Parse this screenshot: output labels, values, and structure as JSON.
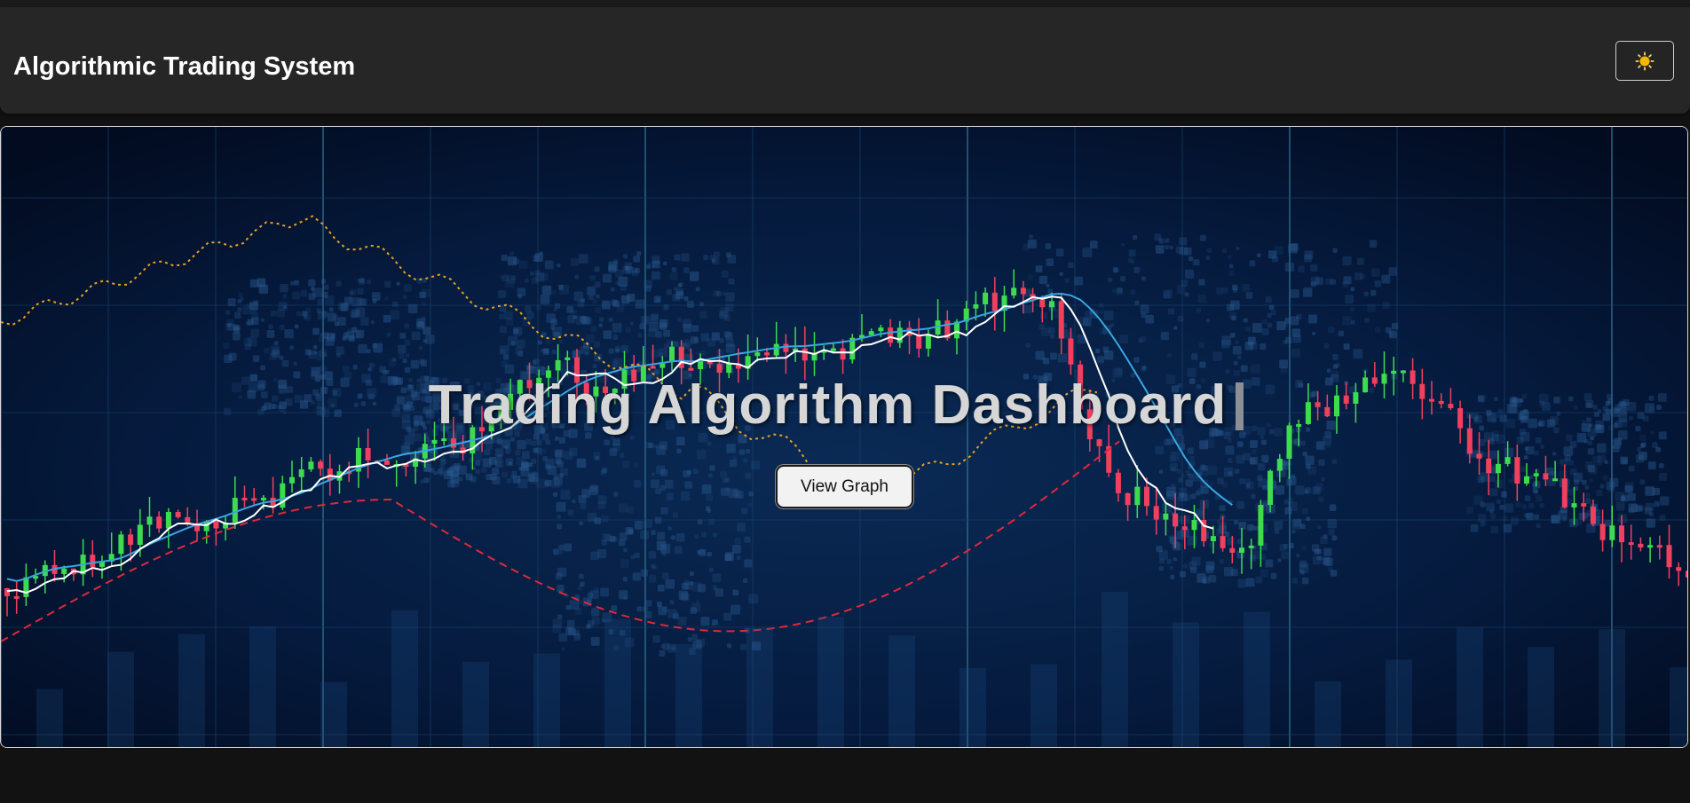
{
  "header": {
    "title": "Algorithmic Trading System",
    "theme_toggle_icon": "sun-icon"
  },
  "hero": {
    "title": "Trading Algorithm Dashboard",
    "button_label": "View Graph"
  },
  "colors": {
    "page_bg": "#121212",
    "header_bg": "#262626",
    "hero_bg": "#031330",
    "candle_up": "#3ddc4f",
    "candle_down": "#f0405e",
    "line_blue": "#3aa6e0",
    "line_white": "#ffffff",
    "line_red_dashed": "#e0283c",
    "line_orange_dotted": "#e8a020",
    "sun": "#f5b800"
  }
}
